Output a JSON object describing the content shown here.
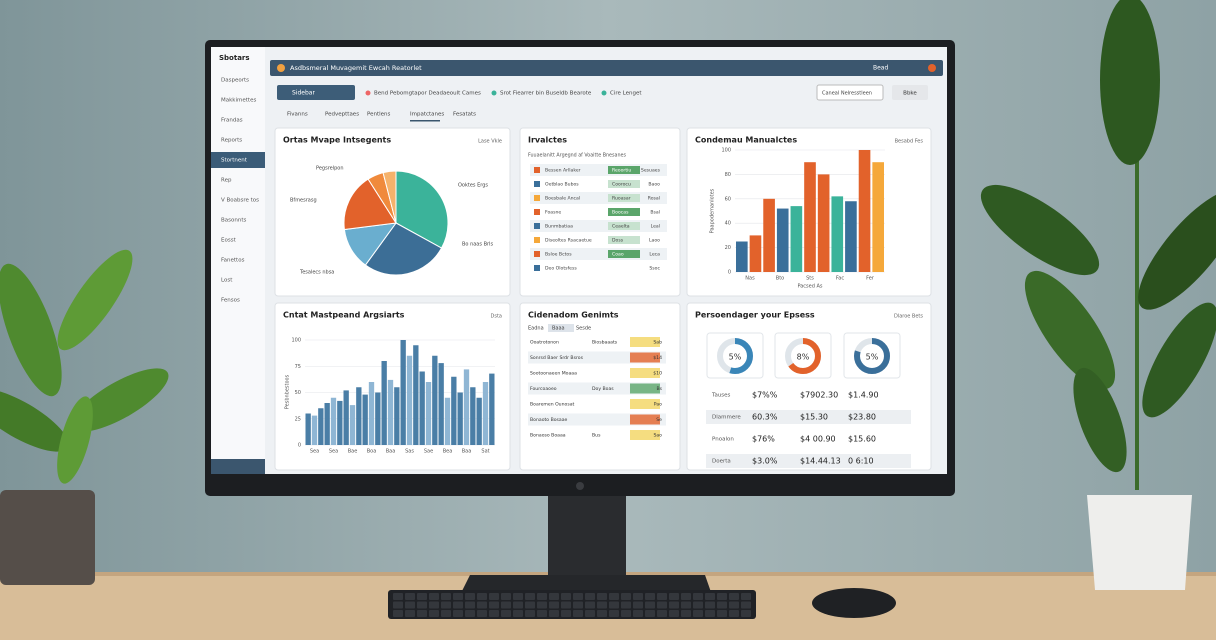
{
  "sidebar": {
    "brand": "Sbotars",
    "items": [
      "Daspeorts",
      "Makkimettes",
      "Frandas",
      "Reports",
      "Stortnent",
      "Rep",
      "V Boabsre tos",
      "Basonnts",
      "Eosst",
      "Fanettos",
      "Lost",
      "Fensos"
    ],
    "active": 4
  },
  "topbar": {
    "title": "Asdbsmeral Muvagemit Ewcah Reatorlet",
    "user": "Bead"
  },
  "toolbar": {
    "button": "Sidebar",
    "filters": [
      "Bend Pebomgtapor Deadaeoult Cames",
      "Srot Fiearrer bin Buseldb Bearote",
      "Cire Lenget"
    ],
    "select": "Caneal Nelresstleen",
    "action": "Bbke"
  },
  "tabs": {
    "items": [
      "Fivanns",
      "Pedvepttaes",
      "Pentlens",
      "Impatctanes",
      "Fesatats"
    ],
    "active": 3
  },
  "pie_panel": {
    "title": "Ortas Mvape Intsegents",
    "link": "Lase Vkle",
    "values": [
      33,
      27,
      13,
      18,
      5,
      4
    ],
    "colors": [
      "#3bb39a",
      "#3c6e96",
      "#6aaecf",
      "#e2622b",
      "#f08a3c",
      "#f5b26b"
    ],
    "callouts": [
      "Pegsrelpon",
      "Ooktes Ergs",
      "Bfmesrasg",
      "Bo naas Brls",
      "Tesalecs nbsa"
    ]
  },
  "table_panel": {
    "title": "Irvalctes",
    "subtitle": "Fuuaelanitt Argegnd af Voaitte Bnesanes",
    "rows": [
      [
        "Bessen Arllaker",
        "Reoortiu",
        "Sesuaes"
      ],
      [
        "Oetblao Bubos",
        "Coorocu",
        "Baoo"
      ],
      [
        "Boesbale Ancal",
        "Ruoasar",
        "Rosal"
      ],
      [
        "Foasne",
        "Boocas",
        "Bsal"
      ],
      [
        "Bunmbatiaa",
        "Ceaelta",
        "Leal"
      ],
      [
        "Diseoltes Rsacaetue",
        "Doss",
        "Laoo"
      ],
      [
        "Bsloe Bctos",
        "Coao",
        "Leca"
      ],
      [
        "Deo Olotsfess",
        "",
        "Ssoc"
      ]
    ]
  },
  "bar_panel": {
    "title": "Condemau Manualctes",
    "link": "Besabd Fes",
    "ylabel": "Paapodemanlotes",
    "categories": [
      "Nas",
      "Bto",
      "Sts",
      "Fac",
      "Fer"
    ],
    "xlabel": "Pacsed As",
    "values": [
      25,
      30,
      60,
      52,
      54,
      90,
      80,
      62,
      58,
      100,
      90
    ],
    "colors": [
      "#3a6f9a",
      "#e2622b",
      "#e2622b",
      "#3a6f9a",
      "#3bb39a",
      "#e2622b",
      "#e2622b",
      "#3bb39a",
      "#3a6f9a",
      "#e2622b",
      "#f5a83a"
    ],
    "ylim": [
      0,
      100
    ],
    "yticks": [
      0,
      20,
      40,
      60,
      80,
      100
    ]
  },
  "hist_panel": {
    "title": "Cntat Mastpeand Argsiarts",
    "link": "Dsta",
    "ylabel": "Pesbnbestoos",
    "values": [
      30,
      28,
      35,
      40,
      45,
      42,
      52,
      38,
      55,
      48,
      60,
      50,
      80,
      62,
      55,
      100,
      85,
      95,
      70,
      60,
      85,
      78,
      45,
      65,
      50,
      72,
      55,
      45,
      60,
      68
    ],
    "ylim": [
      0,
      100
    ],
    "yticks": [
      0,
      25,
      50,
      75,
      100
    ],
    "categories": [
      "Sea",
      "Sea",
      "Bae",
      "Boa",
      "Baa",
      "Sas",
      "Sae",
      "Bea",
      "Baa",
      "Sat"
    ]
  },
  "list_panel": {
    "title": "Cidenadom Genimts",
    "tabs": [
      "Eadna",
      "Baaa",
      "Sesde"
    ],
    "rows": [
      [
        "Ooatrotonon",
        "Biosbaaats",
        "Sab"
      ],
      [
        "Sonrsd Baer Srdr Bsros",
        "",
        "$14"
      ],
      [
        "Sootoonaeen Moaaa",
        "",
        "$10"
      ],
      [
        "Fourcoaoeo",
        "Doy Boas",
        "Bs"
      ],
      [
        "Boaremen Ounosat",
        "",
        "Pao"
      ],
      [
        "Bonaoto Bosaae",
        "",
        "Se"
      ],
      [
        "Bonaoso Boaaa",
        "Bus",
        "Sao"
      ]
    ]
  },
  "expense_panel": {
    "title": "Persoendager your Epsess",
    "link": "Dlaroe Bets",
    "donuts": [
      {
        "label": "5%",
        "value": 55,
        "color": "#3a86b8"
      },
      {
        "label": "8%",
        "value": 65,
        "color": "#e2622b"
      },
      {
        "label": "5%",
        "value": 80,
        "color": "#3a6f9a"
      }
    ],
    "rows": [
      [
        "Tauses",
        "$7%%",
        "$7902.30",
        "$1.4.90"
      ],
      [
        "Dlammere",
        "60.3%",
        "$15.30",
        "$23.80"
      ],
      [
        "Pnoalon",
        "$76%",
        "$4 00.90",
        "$15.60"
      ],
      [
        "Doerta",
        "$3.0%",
        "$14.44.13",
        "0 6:10"
      ]
    ]
  }
}
